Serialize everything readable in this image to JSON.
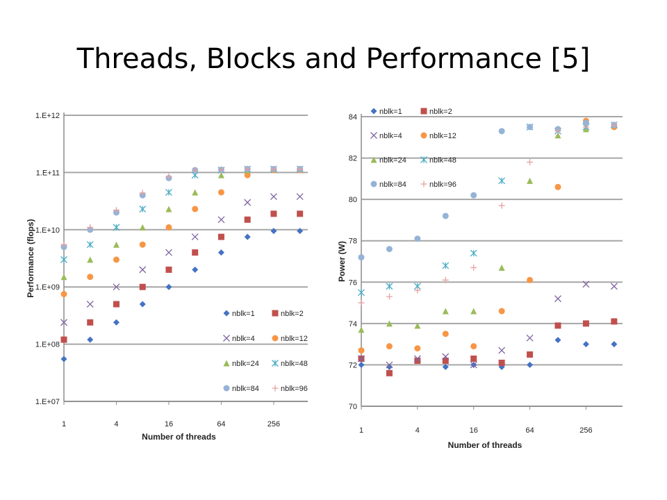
{
  "slide": {
    "title": "Threads, Blocks and Performance [5]"
  },
  "markers": {
    "nblk=1": {
      "color": "#4472c4",
      "shape": "diamond"
    },
    "nblk=2": {
      "color": "#c0504d",
      "shape": "square"
    },
    "nblk=4": {
      "color": "#8064a2",
      "shape": "x"
    },
    "nblk=12": {
      "color": "#f79646",
      "shape": "circle"
    },
    "nblk=24": {
      "color": "#9bbb59",
      "shape": "triangle"
    },
    "nblk=48": {
      "color": "#4bacc6",
      "shape": "star"
    },
    "nblk=84": {
      "color": "#95b3d7",
      "shape": "circle"
    },
    "nblk=96": {
      "color": "#e6a0a0",
      "shape": "plus"
    }
  },
  "chart_data": [
    {
      "type": "scatter",
      "ylabel": "Performance (flops)",
      "xlabel": "Number of threads",
      "yscale": "log",
      "xscale": "log2",
      "ylim": [
        10000000.0,
        1000000000000.0
      ],
      "yticks": [
        "1.E+07",
        "1.E+08",
        "1.E+09",
        "1.E+10",
        "1.E+11",
        "1.E+12"
      ],
      "xticks": [
        "1",
        "4",
        "16",
        "64",
        "256"
      ],
      "legend_position": "lower-right",
      "grid": true,
      "series": [
        {
          "name": "nblk=1",
          "x": [
            1,
            2,
            4,
            8,
            16,
            32,
            64,
            128,
            256,
            512
          ],
          "y": [
            55000000.0,
            120000000.0,
            240000000.0,
            500000000.0,
            1000000000.0,
            2000000000.0,
            4000000000.0,
            7500000000.0,
            9500000000.0,
            9500000000.0
          ]
        },
        {
          "name": "nblk=2",
          "x": [
            1,
            2,
            4,
            8,
            16,
            32,
            64,
            128,
            256,
            512
          ],
          "y": [
            120000000.0,
            240000000.0,
            500000000.0,
            1000000000.0,
            2000000000.0,
            4000000000.0,
            7500000000.0,
            15000000000.0,
            19000000000.0,
            19000000000.0
          ]
        },
        {
          "name": "nblk=4",
          "x": [
            1,
            2,
            4,
            8,
            16,
            32,
            64,
            128,
            256,
            512
          ],
          "y": [
            240000000.0,
            500000000.0,
            1000000000.0,
            2000000000.0,
            4000000000.0,
            7500000000.0,
            15000000000.0,
            30000000000.0,
            38000000000.0,
            38000000000.0
          ]
        },
        {
          "name": "nblk=12",
          "x": [
            1,
            2,
            4,
            8,
            16,
            32,
            64,
            128,
            256,
            512
          ],
          "y": [
            750000000.0,
            1500000000.0,
            3000000000.0,
            5500000000.0,
            11000000000.0,
            23000000000.0,
            45000000000.0,
            90000000000.0,
            110000000000.0,
            110000000000.0
          ]
        },
        {
          "name": "nblk=24",
          "x": [
            1,
            2,
            4,
            8,
            16,
            32,
            64,
            128,
            256,
            512
          ],
          "y": [
            1500000000.0,
            3000000000.0,
            5500000000.0,
            11000000000.0,
            23000000000.0,
            45000000000.0,
            90000000000.0,
            110000000000.0,
            115000000000.0,
            115000000000.0
          ]
        },
        {
          "name": "nblk=48",
          "x": [
            1,
            2,
            4,
            8,
            16,
            32,
            64,
            128,
            256,
            512
          ],
          "y": [
            3000000000.0,
            5500000000.0,
            11000000000.0,
            23000000000.0,
            45000000000.0,
            90000000000.0,
            110000000000.0,
            115000000000.0,
            115000000000.0,
            115000000000.0
          ]
        },
        {
          "name": "nblk=84",
          "x": [
            1,
            2,
            4,
            8,
            16,
            32,
            64,
            128,
            256,
            512
          ],
          "y": [
            5000000000.0,
            10000000000.0,
            20000000000.0,
            40000000000.0,
            80000000000.0,
            110000000000.0,
            112000000000.0,
            115000000000.0,
            115000000000.0,
            115000000000.0
          ]
        },
        {
          "name": "nblk=96",
          "x": [
            1,
            2,
            4,
            8,
            16,
            32,
            64,
            128,
            256,
            512
          ],
          "y": [
            5500000000.0,
            11000000000.0,
            22000000000.0,
            44000000000.0,
            85000000000.0,
            110000000000.0,
            112000000000.0,
            115000000000.0,
            115000000000.0,
            115000000000.0
          ]
        }
      ]
    },
    {
      "type": "scatter",
      "ylabel": "Power (W)",
      "xlabel": "Number of threads",
      "xscale": "log2",
      "ylim": [
        70,
        84
      ],
      "yticks": [
        "70",
        "72",
        "74",
        "76",
        "78",
        "80",
        "82",
        "84"
      ],
      "xticks": [
        "1",
        "4",
        "16",
        "64",
        "256"
      ],
      "legend_position": "top-left",
      "grid": true,
      "series": [
        {
          "name": "nblk=1",
          "x": [
            1,
            2,
            4,
            8,
            16,
            32,
            64,
            128,
            256,
            512
          ],
          "y": [
            72.0,
            71.9,
            72.2,
            71.9,
            72.0,
            71.9,
            72.0,
            73.2,
            73.0,
            73.0
          ]
        },
        {
          "name": "nblk=2",
          "x": [
            1,
            2,
            4,
            8,
            16,
            32,
            64,
            128,
            256,
            512
          ],
          "y": [
            72.3,
            71.6,
            72.2,
            72.2,
            72.3,
            72.1,
            72.5,
            73.9,
            74.0,
            74.1
          ]
        },
        {
          "name": "nblk=4",
          "x": [
            1,
            2,
            4,
            8,
            16,
            32,
            64,
            128,
            256,
            512
          ],
          "y": [
            72.3,
            72.0,
            72.3,
            72.4,
            72.0,
            72.7,
            73.3,
            75.2,
            75.9,
            75.8
          ]
        },
        {
          "name": "nblk=12",
          "x": [
            1,
            2,
            4,
            8,
            16,
            32,
            64,
            128,
            256,
            512
          ],
          "y": [
            72.7,
            72.9,
            72.8,
            73.5,
            72.9,
            74.6,
            76.1,
            80.6,
            83.8,
            83.5
          ]
        },
        {
          "name": "nblk=24",
          "x": [
            1,
            2,
            4,
            8,
            16,
            32,
            64,
            128,
            256,
            512
          ],
          "y": [
            73.7,
            74.0,
            73.9,
            74.6,
            74.6,
            76.7,
            80.9,
            83.1,
            83.4,
            83.6
          ]
        },
        {
          "name": "nblk=48",
          "x": [
            1,
            2,
            4,
            8,
            16,
            32,
            64,
            128,
            256,
            512
          ],
          "y": [
            75.5,
            75.8,
            75.8,
            76.8,
            77.4,
            80.9,
            83.5,
            83.3,
            83.5,
            83.6
          ]
        },
        {
          "name": "nblk=84",
          "x": [
            1,
            2,
            4,
            8,
            16,
            32,
            64,
            128,
            256,
            512
          ],
          "y": [
            77.2,
            77.6,
            78.1,
            79.2,
            80.2,
            83.3,
            83.5,
            83.4,
            83.7,
            83.6
          ]
        },
        {
          "name": "nblk=96",
          "x": [
            1,
            2,
            4,
            8,
            16,
            32,
            64,
            128,
            256,
            512
          ],
          "y": [
            75.0,
            75.3,
            75.6,
            76.1,
            76.7,
            79.7,
            81.8,
            83.3,
            83.5,
            83.6
          ]
        }
      ]
    }
  ]
}
